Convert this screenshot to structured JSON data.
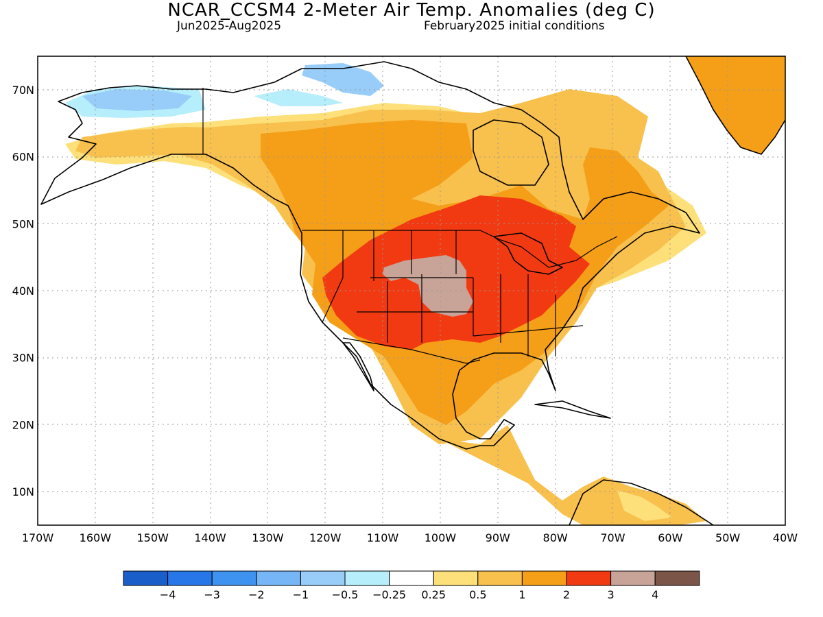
{
  "header": {
    "title": "NCAR_CCSM4 2-Meter Air Temp. Anomalies (deg C)",
    "period": "Jun2025-Aug2025",
    "init": "February2025 initial conditions"
  },
  "map": {
    "lon_range": [
      -170,
      -40
    ],
    "lat_range": [
      5,
      75
    ],
    "lon_ticks": [
      "170W",
      "160W",
      "150W",
      "140W",
      "130W",
      "120W",
      "110W",
      "100W",
      "90W",
      "80W",
      "70W",
      "60W",
      "50W",
      "40W"
    ],
    "lat_ticks": [
      "10N",
      "20N",
      "30N",
      "40N",
      "50N",
      "60N",
      "70N"
    ]
  },
  "legend": {
    "colors": [
      "#1a5fc9",
      "#2877e8",
      "#3f93f0",
      "#76b5f6",
      "#98cdf9",
      "#b6eefc",
      "#ffffff",
      "#fde07a",
      "#f8c04c",
      "#f59e18",
      "#f23a12",
      "#c7a398",
      "#7a5548"
    ],
    "labels": [
      "−4",
      "−3",
      "−2",
      "−1",
      "−0.5",
      "−0.25",
      "0.25",
      "0.5",
      "1",
      "2",
      "3",
      "4"
    ]
  }
}
